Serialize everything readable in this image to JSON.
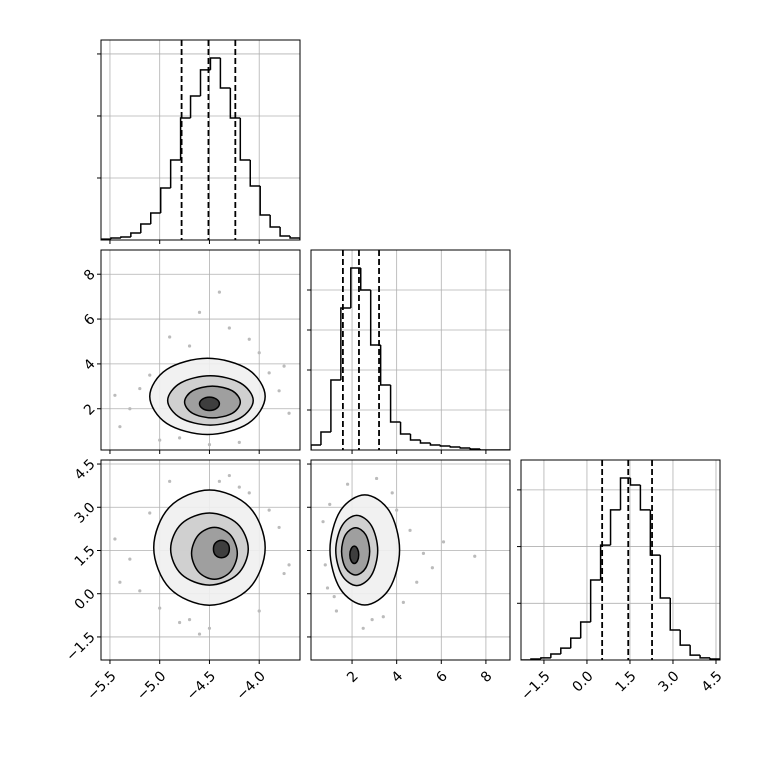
{
  "chart_data": [
    {
      "type": "histogram",
      "color": "#000000",
      "grid": true,
      "bins": [
        -5.59,
        -5.49,
        -5.39,
        -5.29,
        -5.19,
        -5.09,
        -4.99,
        -4.89,
        -4.79,
        -4.69,
        -4.59,
        -4.49,
        -4.39,
        -4.29,
        -4.19,
        -4.09,
        -3.99,
        -3.89,
        -3.79,
        -3.69,
        -3.59
      ],
      "values": [
        6,
        13,
        19,
        45,
        103,
        174,
        335,
        516,
        787,
        929,
        1097,
        1174,
        980,
        787,
        516,
        348,
        161,
        84,
        26,
        13
      ],
      "quantiles": [
        -4.78,
        -4.51,
        -4.24
      ],
      "xlim": [
        -5.59,
        -3.59
      ],
      "xticks": [
        {
          "value": -5.5,
          "label": "−5.5"
        },
        {
          "value": -5.0,
          "label": "−5.0"
        },
        {
          "value": -4.5,
          "label": "−4.5"
        },
        {
          "value": -4.0,
          "label": "−4.0"
        }
      ],
      "ylim": [
        0,
        1290
      ],
      "yticks": [
        400,
        800,
        1200
      ]
    },
    {
      "type": "contour",
      "grid": true,
      "point_color": "#bbbbbb",
      "fill_colors": [
        "#f0f0f0",
        "#cccccc",
        "#999999",
        "#333333"
      ],
      "xlim": [
        -5.59,
        -3.59
      ],
      "xticks": [
        {
          "value": -5.5,
          "label": "−5.5"
        },
        {
          "value": -5.0,
          "label": "−5.0"
        },
        {
          "value": -4.5,
          "label": "−4.5"
        },
        {
          "value": -4.0,
          "label": "−4.0"
        }
      ],
      "ylim": [
        0.16,
        9.08
      ],
      "yticks": [
        2,
        4,
        6,
        8
      ],
      "points": {
        "x": [
          -5.3,
          -5.1,
          -4.9,
          -4.7,
          -4.3,
          -4.0,
          -3.8,
          -5.4,
          -4.6,
          -4.2,
          -3.7,
          -5.0,
          -4.4,
          -3.9,
          -4.8,
          -5.2,
          -4.1,
          -4.5,
          -3.75,
          -5.45
        ],
        "y": [
          2.0,
          3.5,
          5.2,
          4.8,
          5.6,
          4.5,
          2.8,
          1.2,
          6.3,
          0.5,
          1.8,
          0.6,
          7.2,
          3.6,
          0.7,
          2.9,
          5.1,
          0.4,
          3.9,
          2.6
        ]
      },
      "contours": [
        {
          "x": [
            -3.94,
            -4.11,
            -4.52,
            -4.93,
            -5.1,
            -4.93,
            -4.52,
            -4.11
          ],
          "y": [
            2.55,
            3.75,
            4.25,
            3.75,
            2.55,
            1.35,
            0.85,
            1.35
          ]
        },
        {
          "x": [
            -4.06,
            -4.19,
            -4.49,
            -4.79,
            -4.92,
            -4.79,
            -4.49,
            -4.19
          ],
          "y": [
            2.37,
            3.15,
            3.47,
            3.15,
            2.37,
            1.59,
            1.27,
            1.59
          ]
        },
        {
          "x": [
            -4.19,
            -4.27,
            -4.47,
            -4.67,
            -4.75,
            -4.67,
            -4.47,
            -4.27
          ],
          "y": [
            2.3,
            2.8,
            3.01,
            2.8,
            2.3,
            1.8,
            1.59,
            1.8
          ]
        },
        {
          "x": [
            -4.4,
            -4.43,
            -4.5,
            -4.57,
            -4.6,
            -4.57,
            -4.5,
            -4.43
          ],
          "y": [
            2.22,
            2.43,
            2.52,
            2.43,
            2.22,
            2.01,
            1.92,
            2.01
          ]
        }
      ]
    },
    {
      "type": "histogram",
      "color": "#000000",
      "grid": true,
      "bins": [
        0.16,
        0.606,
        1.052,
        1.498,
        1.944,
        2.39,
        2.836,
        3.282,
        3.728,
        4.174,
        4.62,
        5.066,
        5.512,
        5.958,
        6.404,
        6.85,
        7.296,
        7.742,
        8.188,
        8.634,
        9.08
      ],
      "values": [
        25,
        90,
        350,
        710,
        910,
        800,
        525,
        325,
        140,
        80,
        50,
        35,
        25,
        20,
        15,
        10,
        5,
        0,
        0,
        0
      ],
      "quantiles": [
        1.59,
        2.31,
        3.21
      ],
      "xlim": [
        0.16,
        9.08
      ],
      "xticks": [
        2,
        4,
        6,
        8
      ],
      "ylim": [
        0,
        1000
      ],
      "yticks": [
        200,
        400,
        600,
        800
      ]
    },
    {
      "type": "contour",
      "grid": true,
      "point_color": "#bbbbbb",
      "fill_colors": [
        "#f0f0f0",
        "#cccccc",
        "#999999",
        "#333333"
      ],
      "xlim": [
        -5.59,
        -3.59
      ],
      "xticks": [
        {
          "value": -5.5,
          "label": "−5.5"
        },
        {
          "value": -5.0,
          "label": "−5.0"
        },
        {
          "value": -4.5,
          "label": "−4.5"
        },
        {
          "value": -4.0,
          "label": "−4.0"
        }
      ],
      "ylim": [
        -2.3,
        4.64
      ],
      "yticks": [
        {
          "value": -1.5,
          "label": "−1.5"
        },
        {
          "value": 0,
          "label": "0.0"
        },
        1.5,
        {
          "value": 3,
          "label": "3.0"
        },
        4.5
      ],
      "points": {
        "x": [
          -5.3,
          -5.1,
          -4.9,
          -4.7,
          -4.3,
          -4.0,
          -3.8,
          -5.4,
          -4.6,
          -4.2,
          -3.7,
          -5.0,
          -4.4,
          -3.9,
          -4.8,
          -5.2,
          -4.1,
          -4.5,
          -3.75,
          -5.45
        ],
        "y": [
          1.2,
          2.8,
          3.9,
          -0.9,
          4.1,
          -0.6,
          2.3,
          0.4,
          -1.4,
          3.7,
          1.0,
          -0.5,
          3.9,
          2.9,
          -1.0,
          0.1,
          3.5,
          -1.2,
          0.7,
          1.9
        ]
      },
      "contours": [
        {
          "x": [
            -3.94,
            -4.1,
            -4.5,
            -4.9,
            -5.06,
            -4.9,
            -4.5,
            -4.1
          ],
          "y": [
            1.6,
            3.01,
            3.6,
            3.01,
            1.6,
            0.19,
            -0.4,
            0.19
          ]
        },
        {
          "x": [
            -4.11,
            -4.22,
            -4.5,
            -4.78,
            -4.89,
            -4.78,
            -4.5,
            -4.22
          ],
          "y": [
            1.55,
            2.43,
            2.8,
            2.43,
            1.55,
            0.67,
            0.3,
            0.67
          ]
        },
        {
          "x": [
            -4.22,
            -4.29,
            -4.45,
            -4.61,
            -4.68,
            -4.61,
            -4.45,
            -4.29
          ],
          "y": [
            1.4,
            2.04,
            2.3,
            2.04,
            1.4,
            0.76,
            0.5,
            0.76
          ]
        },
        {
          "x": [
            -4.3,
            -4.32,
            -4.38,
            -4.44,
            -4.46,
            -4.44,
            -4.38,
            -4.32
          ],
          "y": [
            1.55,
            1.76,
            1.85,
            1.76,
            1.55,
            1.34,
            1.25,
            1.34
          ]
        }
      ]
    },
    {
      "type": "contour",
      "grid": true,
      "point_color": "#bbbbbb",
      "fill_colors": [
        "#f0f0f0",
        "#cccccc",
        "#999999",
        "#333333"
      ],
      "xlim": [
        0.16,
        9.08
      ],
      "xticks": [
        2,
        4,
        6,
        8
      ],
      "ylim": [
        -2.3,
        4.64
      ],
      "yticks": [
        {
          "value": -1.5,
          "label": "−1.5"
        },
        {
          "value": 0,
          "label": "0.0"
        },
        1.5,
        {
          "value": 3,
          "label": "3.0"
        },
        4.5
      ],
      "points": {
        "x": [
          0.8,
          1.0,
          1.3,
          4.6,
          5.2,
          3.8,
          0.9,
          4.9,
          2.5,
          6.1,
          3.1,
          0.7,
          4.3,
          1.8,
          5.6,
          2.9,
          1.2,
          7.5,
          4.0,
          3.4
        ],
        "y": [
          1.0,
          3.1,
          -0.6,
          2.2,
          1.4,
          3.5,
          0.2,
          0.4,
          -1.2,
          1.8,
          4.0,
          2.5,
          -0.3,
          3.8,
          0.9,
          -0.9,
          -0.1,
          1.3,
          2.9,
          -0.8
        ]
      },
      "contours": [
        {
          "x": [
            4.13,
            3.67,
            2.57,
            1.47,
            1.01,
            1.47,
            2.57,
            3.67
          ],
          "y": [
            1.52,
            2.87,
            3.43,
            2.87,
            1.52,
            0.17,
            -0.39,
            0.17
          ]
        },
        {
          "x": [
            3.15,
            2.87,
            2.21,
            1.55,
            1.27,
            1.55,
            2.21,
            2.87
          ],
          "y": [
            1.5,
            2.36,
            2.72,
            2.36,
            1.5,
            0.64,
            0.28,
            0.64
          ]
        },
        {
          "x": [
            2.79,
            2.61,
            2.16,
            1.71,
            1.53,
            1.71,
            2.16,
            2.61
          ],
          "y": [
            1.47,
            2.05,
            2.29,
            2.05,
            1.47,
            0.89,
            0.65,
            0.89
          ]
        },
        {
          "x": [
            2.3,
            2.24,
            2.1,
            1.96,
            1.9,
            1.96,
            2.1,
            2.24
          ],
          "y": [
            1.35,
            1.56,
            1.65,
            1.56,
            1.35,
            1.14,
            1.05,
            1.14
          ]
        }
      ]
    },
    {
      "type": "histogram",
      "color": "#000000",
      "grid": true,
      "bins": [
        -2.3,
        -1.953,
        -1.606,
        -1.259,
        -0.912,
        -0.565,
        -0.218,
        0.129,
        0.476,
        0.823,
        1.17,
        1.517,
        1.864,
        2.211,
        2.558,
        2.905,
        3.252,
        3.599,
        3.946,
        4.293,
        4.64
      ],
      "values": [
        0,
        5,
        11,
        32,
        63,
        116,
        201,
        423,
        608,
        794,
        963,
        926,
        794,
        555,
        328,
        159,
        79,
        26,
        11,
        5
      ],
      "quantiles": [
        0.53,
        1.44,
        2.27
      ],
      "xlim": [
        -2.3,
        4.64
      ],
      "xticks": [
        {
          "value": -1.5,
          "label": "−1.5"
        },
        {
          "value": 0,
          "label": "0.0"
        },
        1.5,
        {
          "value": 3,
          "label": "3.0"
        },
        4.5
      ],
      "ylim": [
        0,
        1058
      ],
      "yticks": [
        300,
        600,
        900
      ]
    }
  ]
}
